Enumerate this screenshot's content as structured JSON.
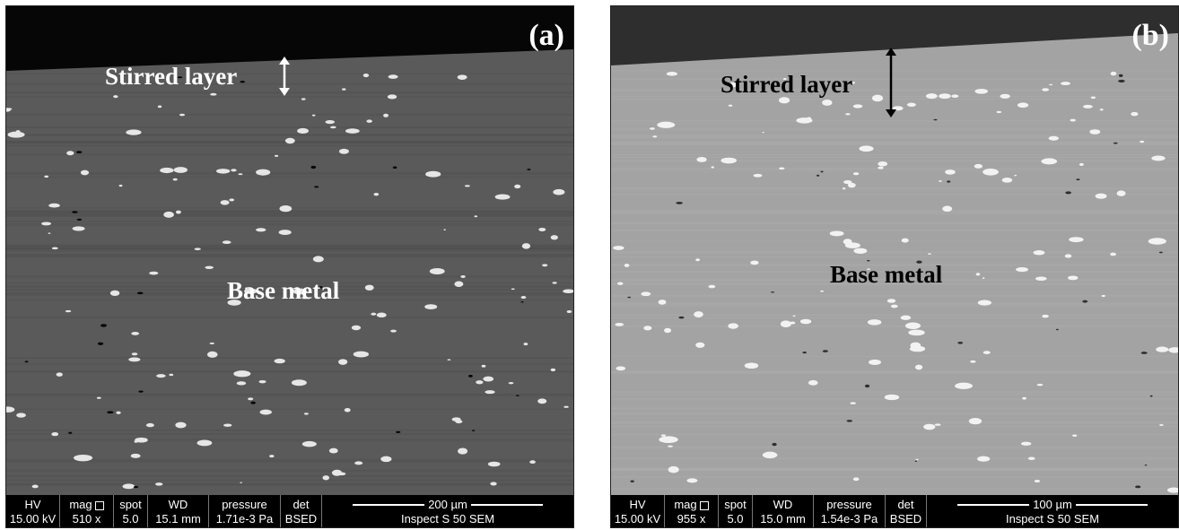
{
  "panels": [
    {
      "label": "(a)",
      "stirred_label": "Stirred layer",
      "base_label": "Base metal",
      "colors": {
        "matrix": "#5a5a5a",
        "void": "#060606",
        "particle": "#e6e6e6"
      },
      "databar": {
        "hv_label": "HV",
        "hv_value": "15.00 kV",
        "mag_label": "mag",
        "mag_value": "510 x",
        "spot_label": "spot",
        "spot_value": "5.0",
        "wd_label": "WD",
        "wd_value": "15.1 mm",
        "pressure_label": "pressure",
        "pressure_value": "1.71e-3 Pa",
        "det_label": "det",
        "det_value": "BSED",
        "scale_text": "200 µm",
        "instrument": "Inspect S 50 SEM"
      }
    },
    {
      "label": "(b)",
      "stirred_label": "Stirred layer",
      "base_label": "Base metal",
      "colors": {
        "matrix": "#a3a3a3",
        "void": "#2e2e2e",
        "particle": "#f2f2f2"
      },
      "databar": {
        "hv_label": "HV",
        "hv_value": "15.00 kV",
        "mag_label": "mag",
        "mag_value": "955 x",
        "spot_label": "spot",
        "spot_value": "5.0",
        "wd_label": "WD",
        "wd_value": "15.0 mm",
        "pressure_label": "pressure",
        "pressure_value": "1.54e-3 Pa",
        "det_label": "det",
        "det_value": "BSED",
        "scale_text": "100 µm",
        "instrument": "Inspect S 50 SEM"
      }
    }
  ]
}
